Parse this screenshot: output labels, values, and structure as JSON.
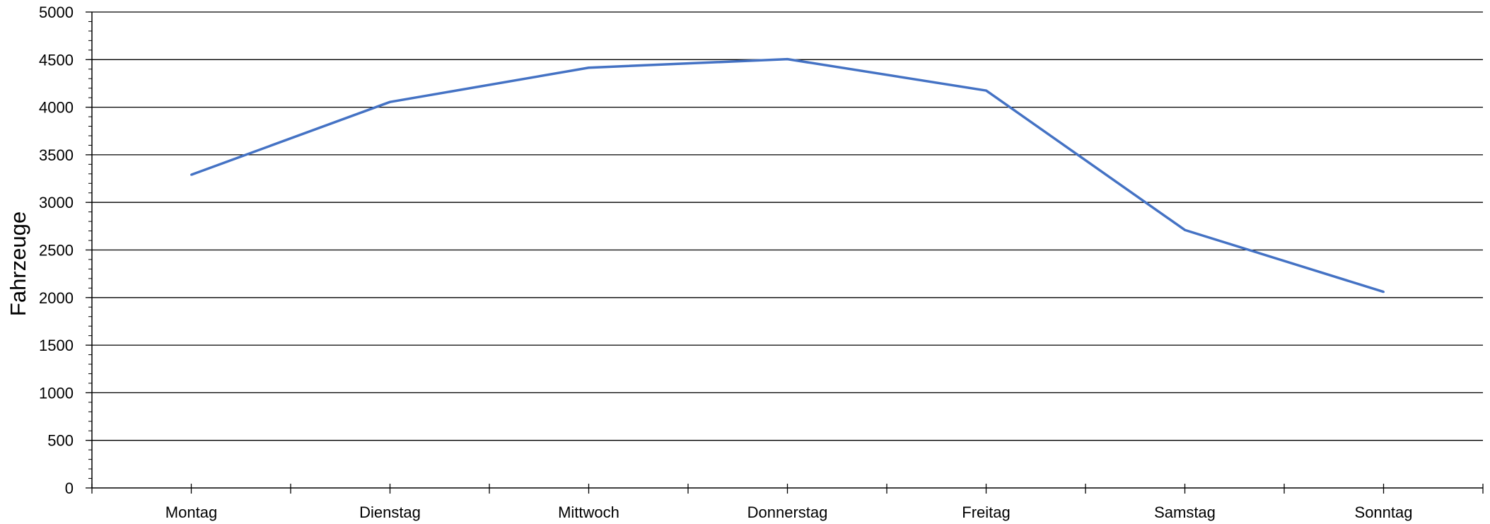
{
  "chart_data": {
    "type": "line",
    "title": "",
    "xlabel": "",
    "ylabel": "Fahrzeuge",
    "categories": [
      "Montag",
      "Dienstag",
      "Mittwoch",
      "Donnerstag",
      "Freitag",
      "Samstag",
      "Sonntag"
    ],
    "series": [
      {
        "values": [
          3290,
          4055,
          4415,
          4505,
          4175,
          2710,
          2060
        ],
        "color": "#4472C4"
      }
    ],
    "ylim": [
      0,
      5000
    ],
    "yticks": [
      "0",
      "500",
      "1000",
      "1500",
      "2000",
      "2500",
      "3000",
      "3500",
      "4000",
      "4500",
      "5000"
    ],
    "grid": true,
    "legend": "none"
  }
}
